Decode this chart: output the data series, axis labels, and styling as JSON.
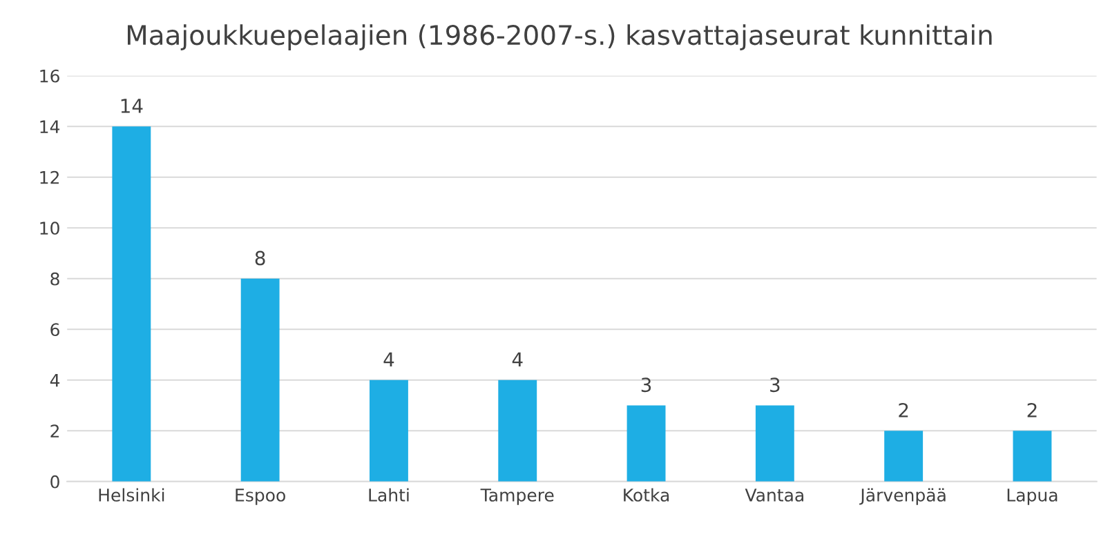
{
  "chart_data": {
    "type": "bar",
    "title": "Maajoukkuepelaajien (1986-2007-s.) kasvattajaseurat kunnittain",
    "categories": [
      "Helsinki",
      "Espoo",
      "Lahti",
      "Tampere",
      "Kotka",
      "Vantaa",
      "Järvenpää",
      "Lapua"
    ],
    "values": [
      14,
      8,
      4,
      4,
      3,
      3,
      2,
      2
    ],
    "color": "#1eaee4",
    "ylim": [
      0,
      16
    ],
    "yticks": [
      0,
      2,
      4,
      6,
      8,
      10,
      12,
      14,
      16
    ],
    "grid": "y",
    "data_labels": true
  }
}
